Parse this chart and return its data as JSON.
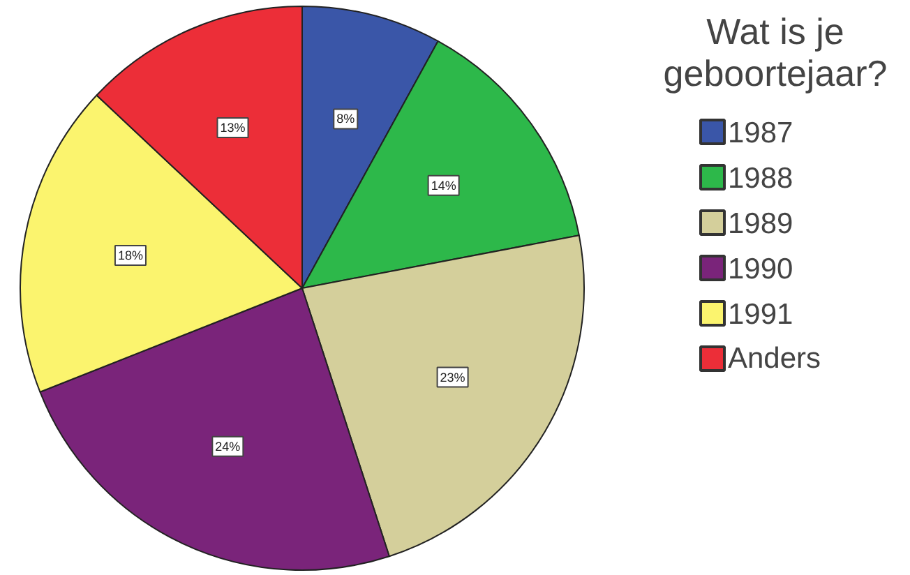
{
  "chart_data": {
    "type": "pie",
    "legend_title": "Wat is je geboortejaar?",
    "categories": [
      "1987",
      "1988",
      "1989",
      "1990",
      "1991",
      "Anders"
    ],
    "values": [
      8,
      14,
      23,
      24,
      18,
      13
    ],
    "colors": [
      "#3a56a8",
      "#2db84a",
      "#d4cf9b",
      "#7a247a",
      "#fbf46e",
      "#ec2e38"
    ],
    "value_labels": [
      "8%",
      "14%",
      "23%",
      "24%",
      "18%",
      "13%"
    ],
    "legend": "right"
  }
}
